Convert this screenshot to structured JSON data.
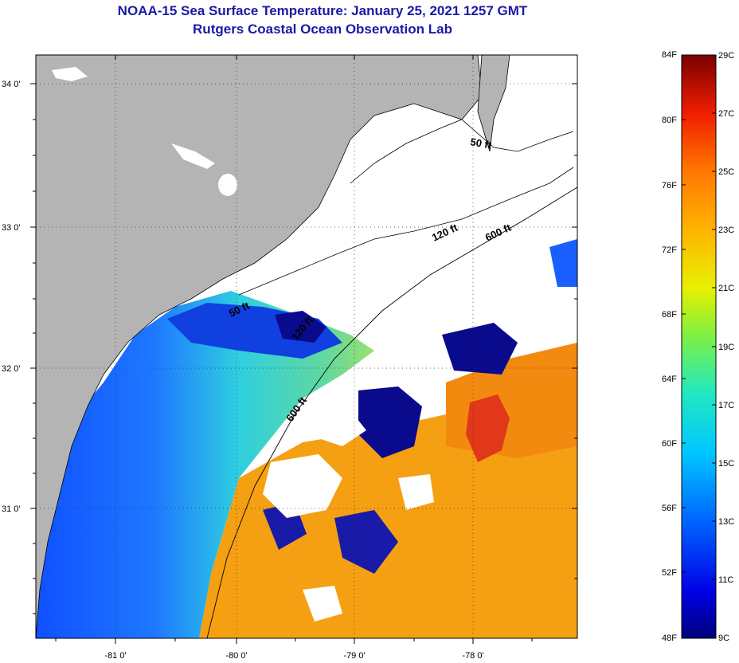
{
  "title": {
    "line1": "NOAA-15 Sea Surface Temperature:  January 25, 2021 1257 GMT",
    "line2": "Rutgers Coastal Ocean Observation Lab"
  },
  "map": {
    "lat_labels": [
      "34 0'",
      "33 0'",
      "32 0'",
      "31 0'"
    ],
    "lon_labels": [
      "-81 0'",
      "-80 0'",
      "-79 0'",
      "-78 0'"
    ],
    "isobaths": {
      "label_50_a": "50 ft",
      "label_50_b": "50 ft",
      "label_120_a": "120 ft",
      "label_120_b": "120 ft",
      "label_600_a": "600 ft",
      "label_600_b": "600 ft"
    },
    "colors": {
      "land": "#b4b4b4",
      "cloud": "#ffffff",
      "cold": "#0a0a8c",
      "cool": "#1e5aff",
      "mid": "#2ecfe0",
      "warm": "#f5a012",
      "hot": "#e82814"
    }
  },
  "colorbar": {
    "fahrenheit": [
      "84F",
      "80F",
      "76F",
      "72F",
      "68F",
      "64F",
      "60F",
      "56F",
      "52F",
      "48F"
    ],
    "celsius": [
      "29C",
      "27C",
      "25C",
      "23C",
      "21C",
      "19C",
      "17C",
      "15C",
      "13C",
      "11C",
      "9C"
    ]
  }
}
